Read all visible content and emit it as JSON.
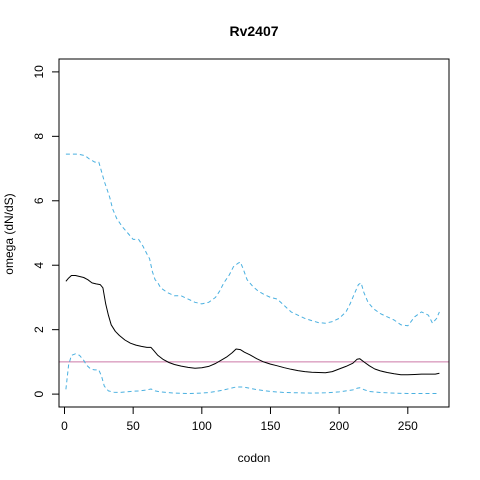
{
  "chart_data": {
    "type": "line",
    "title": "Rv2407",
    "xlabel": "codon",
    "ylabel": "omega (dN/dS)",
    "xlim": [
      -4,
      280
    ],
    "ylim": [
      -0.4,
      10.4
    ],
    "x_ticks": [
      0,
      50,
      100,
      150,
      200,
      250
    ],
    "y_ticks": [
      0,
      2,
      4,
      6,
      8,
      10
    ],
    "grid": false,
    "reference_line": {
      "y": 1,
      "color": "#cc79a7"
    },
    "series": [
      {
        "role": "estimate",
        "color": "#000000",
        "dash": "solid",
        "x": [
          1,
          3,
          5,
          8,
          11,
          14,
          17,
          20,
          23,
          26,
          28,
          30,
          32,
          34,
          37,
          40,
          44,
          48,
          52,
          56,
          60,
          63,
          65,
          68,
          72,
          76,
          80,
          85,
          90,
          95,
          100,
          105,
          110,
          114,
          118,
          122,
          125,
          128,
          131,
          135,
          140,
          145,
          150,
          155,
          160,
          165,
          170,
          175,
          180,
          185,
          190,
          195,
          200,
          205,
          210,
          213,
          215,
          218,
          222,
          226,
          230,
          235,
          240,
          245,
          250,
          255,
          260,
          265,
          270,
          273
        ],
        "y": [
          3.5,
          3.6,
          3.68,
          3.68,
          3.65,
          3.62,
          3.55,
          3.45,
          3.42,
          3.4,
          3.3,
          2.8,
          2.45,
          2.15,
          1.95,
          1.82,
          1.68,
          1.58,
          1.52,
          1.48,
          1.45,
          1.45,
          1.35,
          1.2,
          1.07,
          0.98,
          0.92,
          0.87,
          0.83,
          0.8,
          0.82,
          0.86,
          0.95,
          1.05,
          1.15,
          1.28,
          1.4,
          1.38,
          1.3,
          1.22,
          1.1,
          1.0,
          0.93,
          0.88,
          0.82,
          0.77,
          0.73,
          0.7,
          0.68,
          0.67,
          0.66,
          0.7,
          0.78,
          0.86,
          0.96,
          1.08,
          1.1,
          1.0,
          0.88,
          0.78,
          0.72,
          0.67,
          0.63,
          0.6,
          0.6,
          0.61,
          0.62,
          0.62,
          0.62,
          0.65
        ]
      },
      {
        "role": "upper",
        "color": "#4ab0e0",
        "dash": "dashed",
        "x": [
          1,
          10,
          15,
          18,
          22,
          25,
          27,
          29,
          31,
          33,
          35,
          38,
          42,
          46,
          50,
          54,
          57,
          60,
          62,
          64,
          66,
          68,
          70,
          75,
          80,
          85,
          90,
          95,
          100,
          105,
          110,
          113,
          116,
          120,
          123,
          126,
          128,
          130,
          133,
          137,
          141,
          145,
          150,
          155,
          160,
          165,
          170,
          175,
          180,
          185,
          190,
          195,
          200,
          205,
          208,
          211,
          214,
          216,
          218,
          221,
          225,
          230,
          235,
          240,
          245,
          250,
          255,
          260,
          265,
          268,
          271,
          273
        ],
        "y": [
          7.45,
          7.45,
          7.4,
          7.3,
          7.2,
          7.2,
          6.9,
          6.6,
          6.35,
          6.1,
          5.75,
          5.45,
          5.2,
          5.0,
          4.8,
          4.8,
          4.6,
          4.35,
          4.2,
          3.8,
          3.55,
          3.45,
          3.3,
          3.15,
          3.05,
          3.05,
          2.95,
          2.85,
          2.8,
          2.85,
          3.0,
          3.2,
          3.45,
          3.7,
          3.95,
          4.05,
          4.1,
          3.9,
          3.55,
          3.35,
          3.2,
          3.1,
          3.0,
          2.95,
          2.75,
          2.55,
          2.45,
          2.35,
          2.28,
          2.22,
          2.2,
          2.25,
          2.35,
          2.55,
          2.8,
          3.1,
          3.4,
          3.45,
          3.15,
          2.85,
          2.65,
          2.5,
          2.4,
          2.3,
          2.15,
          2.12,
          2.4,
          2.55,
          2.45,
          2.2,
          2.35,
          2.55
        ]
      },
      {
        "role": "lower",
        "color": "#4ab0e0",
        "dash": "dashed",
        "x": [
          1,
          3,
          5,
          8,
          11,
          14,
          16,
          19,
          22,
          25,
          27,
          29,
          32,
          36,
          40,
          45,
          50,
          55,
          60,
          63,
          66,
          70,
          75,
          80,
          90,
          100,
          105,
          110,
          115,
          120,
          125,
          130,
          135,
          140,
          150,
          160,
          170,
          180,
          190,
          200,
          205,
          210,
          213,
          215,
          218,
          222,
          230,
          240,
          250,
          260,
          270,
          273
        ],
        "y": [
          0.15,
          0.9,
          1.2,
          1.25,
          1.2,
          1.05,
          0.9,
          0.78,
          0.75,
          0.75,
          0.55,
          0.25,
          0.1,
          0.06,
          0.05,
          0.07,
          0.09,
          0.1,
          0.13,
          0.16,
          0.1,
          0.07,
          0.05,
          0.03,
          0.02,
          0.03,
          0.05,
          0.08,
          0.12,
          0.17,
          0.22,
          0.22,
          0.18,
          0.14,
          0.08,
          0.05,
          0.04,
          0.03,
          0.04,
          0.07,
          0.1,
          0.13,
          0.18,
          0.2,
          0.14,
          0.08,
          0.05,
          0.03,
          0.02,
          0.02,
          0.02,
          0.02
        ]
      }
    ]
  }
}
